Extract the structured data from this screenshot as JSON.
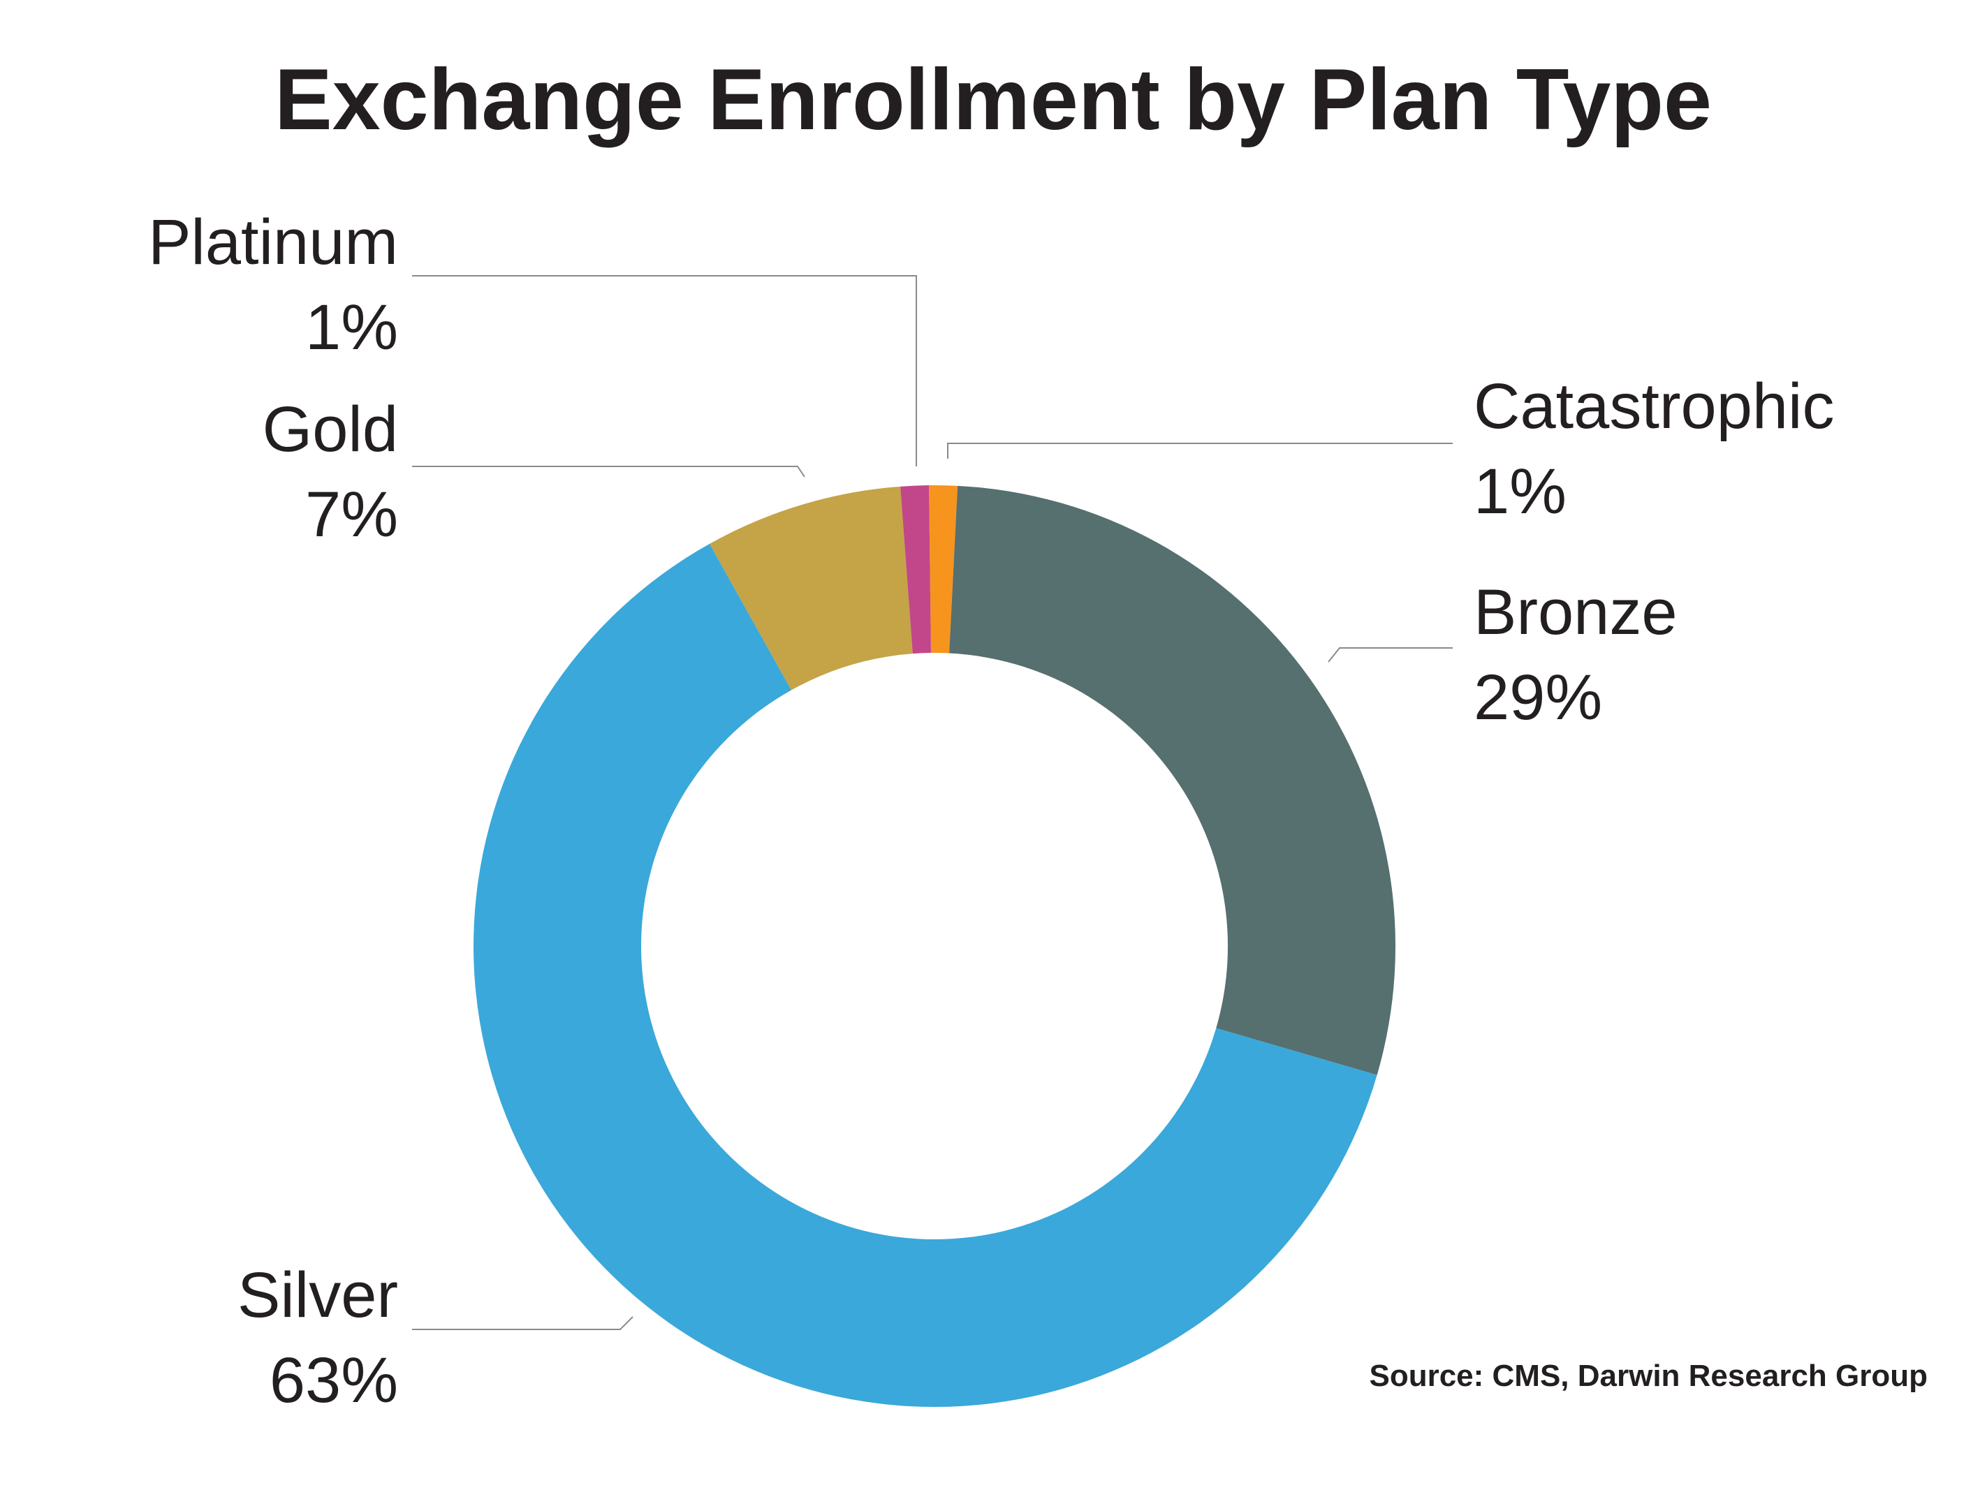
{
  "chart_data": {
    "type": "pie",
    "style": "donut",
    "title": "Exchange Enrollment by Plan Type",
    "source": "Source: CMS, Darwin Research Group",
    "slices": [
      {
        "name": "Catastrophic",
        "value": 1,
        "label": "1%",
        "color": "#f7941d"
      },
      {
        "name": "Bronze",
        "value": 29,
        "label": "29%",
        "color": "#566f6f"
      },
      {
        "name": "Silver",
        "value": 63,
        "label": "63%",
        "color": "#3aa8da"
      },
      {
        "name": "Gold",
        "value": 7,
        "label": "7%",
        "color": "#c4a447"
      },
      {
        "name": "Platinum",
        "value": 1,
        "label": "1%",
        "color": "#c1478a"
      }
    ]
  }
}
